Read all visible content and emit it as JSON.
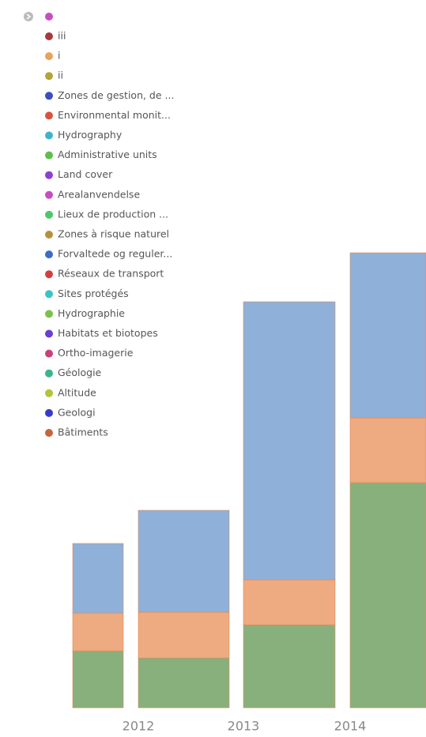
{
  "chart_data": {
    "type": "stacked-bar",
    "categories": [
      null,
      "2012",
      "2013",
      "2014"
    ],
    "series": [
      {
        "color": "#88b07c",
        "values": [
          72,
          63,
          105,
          285
        ]
      },
      {
        "color": "#eeaa80",
        "values": [
          48,
          58,
          57,
          82
        ]
      },
      {
        "color": "#8fb0d8",
        "values": [
          88,
          129,
          352,
          209
        ]
      }
    ],
    "ylim": [
      0,
      600
    ],
    "legend": [
      {
        "label": "iii",
        "color": "#a63a3a"
      },
      {
        "label": "i",
        "color": "#e8a25c"
      },
      {
        "label": "ii",
        "color": "#b5a33a"
      },
      {
        "label": "Zones de gestion, de ...",
        "color": "#3a4fc4"
      },
      {
        "label": "Environmental monit...",
        "color": "#d9533f"
      },
      {
        "label": "Hydrography",
        "color": "#3fb4c9"
      },
      {
        "label": "Administrative units",
        "color": "#5cbf4a"
      },
      {
        "label": "Land cover",
        "color": "#8e3ed6"
      },
      {
        "label": "Arealanvendelse",
        "color": "#c64fc0"
      },
      {
        "label": "Lieux de production ...",
        "color": "#4cc76a"
      },
      {
        "label": "Zones à risque naturel",
        "color": "#b8903a"
      },
      {
        "label": "Forvaltede og reguler...",
        "color": "#3a6cc9"
      },
      {
        "label": "Réseaux de transport",
        "color": "#d33f3f"
      },
      {
        "label": "Sites protégés",
        "color": "#3fc2c2"
      },
      {
        "label": "Hydrographie",
        "color": "#7ac24a"
      },
      {
        "label": "Habitats et biotopes",
        "color": "#6a3ed6"
      },
      {
        "label": "Ortho-imagerie",
        "color": "#c9407a"
      },
      {
        "label": "Géologie",
        "color": "#3ab58a"
      },
      {
        "label": "Altitude",
        "color": "#b5c23a"
      },
      {
        "label": "Geologi",
        "color": "#3a3ac9"
      },
      {
        "label": "Bâtiments",
        "color": "#c9643a"
      }
    ]
  }
}
